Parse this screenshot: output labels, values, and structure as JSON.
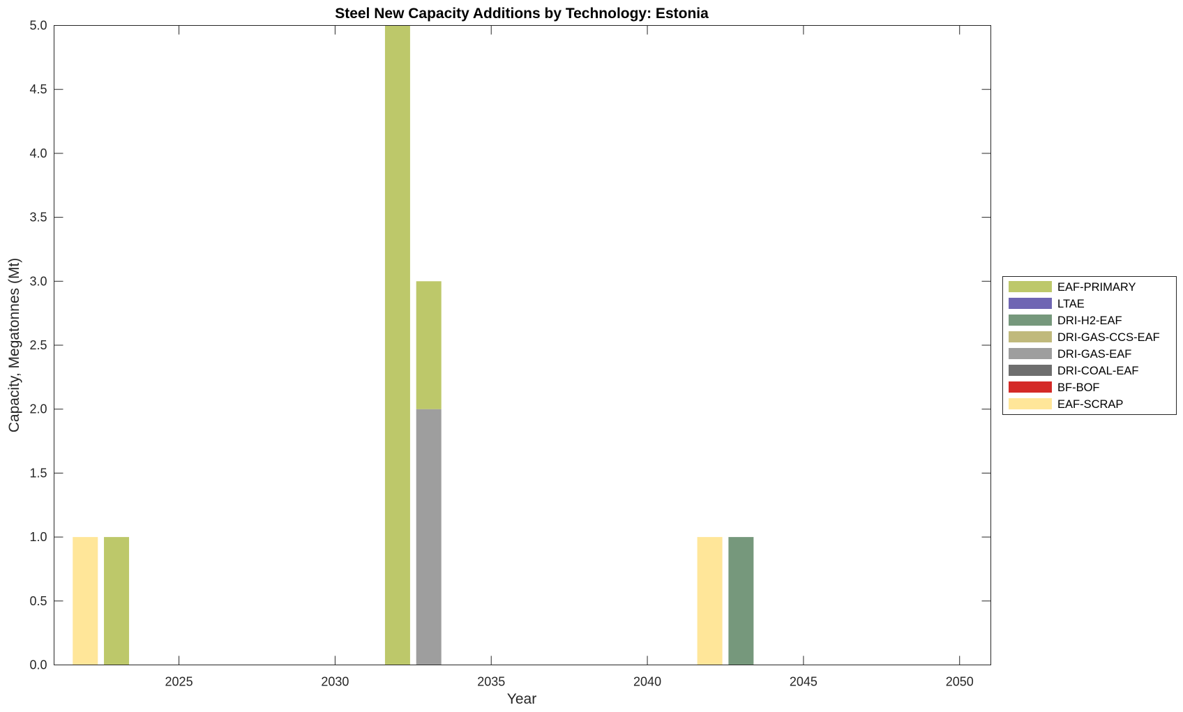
{
  "chart_data": {
    "type": "bar",
    "stacked": true,
    "title": "Steel New Capacity Additions by Technology: Estonia",
    "xlabel": "Year",
    "ylabel": "Capacity, Megatonnes (Mt)",
    "xlim": [
      2021,
      2051
    ],
    "ylim": [
      0,
      5
    ],
    "xticks": [
      "2025",
      "2030",
      "2035",
      "2040",
      "2045",
      "2050"
    ],
    "yticks": [
      "0.0",
      "0.5",
      "1.0",
      "1.5",
      "2.0",
      "2.5",
      "3.0",
      "3.5",
      "4.0",
      "4.5",
      "5.0"
    ],
    "grid": false,
    "legend_position": "outside-right",
    "x": [
      2022,
      2023,
      2032,
      2033,
      2042,
      2043
    ],
    "series": [
      {
        "name": "EAF-SCRAP",
        "color": "#FFE699",
        "values": [
          1,
          0,
          0,
          0,
          1,
          0
        ]
      },
      {
        "name": "BF-BOF",
        "color": "#D42A27",
        "values": [
          0,
          0,
          0,
          0,
          0,
          0
        ]
      },
      {
        "name": "DRI-COAL-EAF",
        "color": "#6E6E6E",
        "values": [
          0,
          0,
          0,
          0,
          0,
          0
        ]
      },
      {
        "name": "DRI-GAS-EAF",
        "color": "#9E9E9E",
        "values": [
          0,
          0,
          0,
          2,
          0,
          0
        ]
      },
      {
        "name": "DRI-GAS-CCS-EAF",
        "color": "#C0B97C",
        "values": [
          0,
          0,
          0,
          0,
          0,
          0
        ]
      },
      {
        "name": "DRI-H2-EAF",
        "color": "#76987C",
        "values": [
          0,
          0,
          0,
          0,
          0,
          1
        ]
      },
      {
        "name": "LTAE",
        "color": "#6F66B3",
        "values": [
          0,
          0,
          0,
          0,
          0,
          0
        ]
      },
      {
        "name": "EAF-PRIMARY",
        "color": "#BDC86A",
        "values": [
          0,
          1,
          5,
          1,
          0,
          0
        ]
      }
    ],
    "legend_order": [
      "EAF-PRIMARY",
      "LTAE",
      "DRI-H2-EAF",
      "DRI-GAS-CCS-EAF",
      "DRI-GAS-EAF",
      "DRI-COAL-EAF",
      "BF-BOF",
      "EAF-SCRAP"
    ]
  }
}
